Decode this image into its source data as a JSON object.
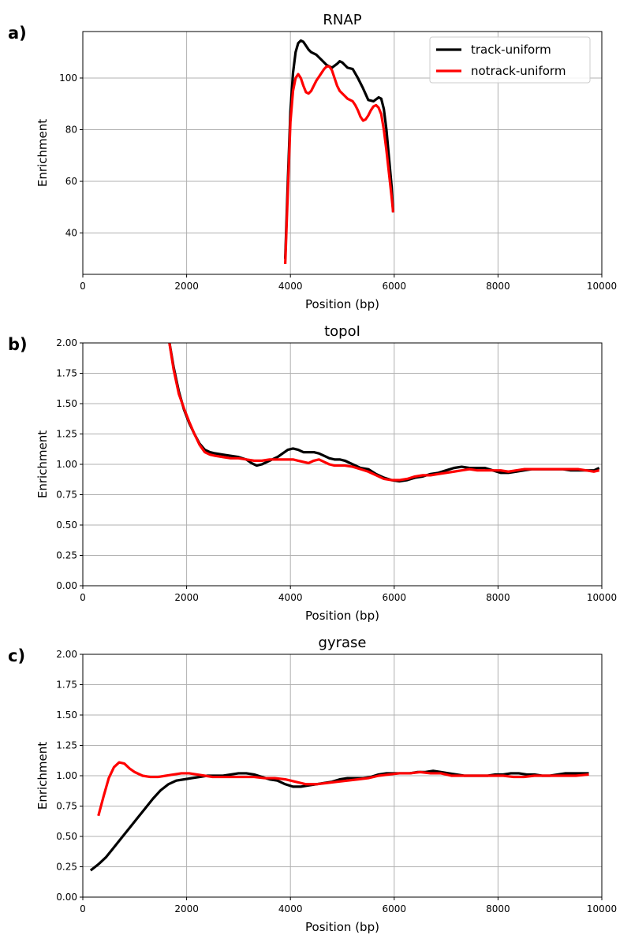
{
  "colors": {
    "track": "#000000",
    "notrack": "#ff0000",
    "grid": "#b0b0b0"
  },
  "chart_data": [
    {
      "panel": "a)",
      "type": "line",
      "title": "RNAP",
      "xlabel": "Position (bp)",
      "ylabel": "Enrichment",
      "xlim": [
        0,
        10000
      ],
      "ylim": [
        24,
        118
      ],
      "xticks": [
        0,
        2000,
        4000,
        6000,
        8000,
        10000
      ],
      "yticks": [
        40,
        60,
        80,
        100
      ],
      "grid": true,
      "legend": {
        "placement": "top-right",
        "entries": [
          "track-uniform",
          "notrack-uniform"
        ]
      },
      "series": [
        {
          "name": "track-uniform",
          "color": "#000000",
          "x": [
            3900,
            3950,
            4000,
            4050,
            4100,
            4150,
            4200,
            4250,
            4300,
            4350,
            4400,
            4450,
            4500,
            4600,
            4700,
            4800,
            4900,
            4950,
            5000,
            5050,
            5100,
            5200,
            5300,
            5400,
            5500,
            5600,
            5700,
            5750,
            5800,
            5850,
            5900,
            5950,
            5980
          ],
          "y": [
            30,
            60,
            87,
            102,
            110,
            113.5,
            114.5,
            114,
            112.5,
            111,
            110,
            109.5,
            109,
            107,
            105,
            104,
            105.5,
            106.5,
            106,
            105,
            104,
            103.5,
            100,
            96,
            91.5,
            91,
            92.5,
            92,
            88,
            80,
            69,
            58,
            48
          ]
        },
        {
          "name": "notrack-uniform",
          "color": "#ff0000",
          "x": [
            3900,
            3950,
            4000,
            4050,
            4100,
            4150,
            4200,
            4250,
            4300,
            4350,
            4400,
            4450,
            4500,
            4550,
            4600,
            4650,
            4700,
            4750,
            4800,
            4850,
            4900,
            4950,
            5000,
            5050,
            5100,
            5150,
            5200,
            5250,
            5300,
            5350,
            5400,
            5450,
            5500,
            5550,
            5600,
            5650,
            5700,
            5750,
            5800,
            5850,
            5900,
            5950,
            5980
          ],
          "y": [
            28,
            56,
            83,
            95,
            100,
            101.5,
            100,
            97,
            94.5,
            94,
            95,
            97,
            99,
            100.5,
            102,
            103.5,
            104.5,
            104.5,
            103,
            100,
            97,
            95,
            94,
            93,
            92,
            91.5,
            91,
            89.5,
            87.5,
            85,
            83.5,
            84,
            85.5,
            87.5,
            89,
            89.5,
            88.5,
            86,
            80,
            72,
            63,
            54,
            48
          ]
        }
      ]
    },
    {
      "panel": "b)",
      "type": "line",
      "title": "topoI",
      "xlabel": "Position (bp)",
      "ylabel": "Enrichment",
      "xlim": [
        0,
        10000
      ],
      "ylim": [
        0,
        2.0
      ],
      "xticks": [
        0,
        2000,
        4000,
        6000,
        8000,
        10000
      ],
      "yticks": [
        0.0,
        0.25,
        0.5,
        0.75,
        1.0,
        1.25,
        1.5,
        1.75,
        2.0
      ],
      "ytick_labels": [
        "0.00",
        "0.25",
        "0.50",
        "0.75",
        "1.00",
        "1.25",
        "1.50",
        "1.75",
        "2.00"
      ],
      "grid": true,
      "series": [
        {
          "name": "track-uniform",
          "color": "#000000",
          "x": [
            1550,
            1650,
            1750,
            1850,
            1950,
            2050,
            2150,
            2250,
            2350,
            2450,
            2550,
            2700,
            2850,
            3000,
            3150,
            3250,
            3350,
            3450,
            3550,
            3650,
            3750,
            3850,
            3950,
            4050,
            4150,
            4250,
            4350,
            4450,
            4550,
            4650,
            4750,
            4850,
            4950,
            5050,
            5200,
            5350,
            5500,
            5650,
            5800,
            5950,
            6100,
            6250,
            6400,
            6550,
            6700,
            6850,
            7000,
            7150,
            7300,
            7450,
            7600,
            7750,
            7900,
            8050,
            8200,
            8350,
            8500,
            8650,
            8800,
            8950,
            9100,
            9250,
            9400,
            9550,
            9700,
            9850,
            9950
          ],
          "y": [
            2.3,
            2.05,
            1.8,
            1.6,
            1.45,
            1.34,
            1.25,
            1.17,
            1.12,
            1.1,
            1.09,
            1.08,
            1.07,
            1.06,
            1.04,
            1.01,
            0.99,
            1.0,
            1.02,
            1.04,
            1.06,
            1.09,
            1.12,
            1.13,
            1.12,
            1.1,
            1.1,
            1.1,
            1.09,
            1.07,
            1.05,
            1.04,
            1.04,
            1.03,
            1.0,
            0.97,
            0.96,
            0.92,
            0.89,
            0.87,
            0.86,
            0.87,
            0.89,
            0.9,
            0.92,
            0.93,
            0.95,
            0.97,
            0.98,
            0.97,
            0.97,
            0.97,
            0.95,
            0.93,
            0.93,
            0.94,
            0.95,
            0.96,
            0.96,
            0.96,
            0.96,
            0.96,
            0.95,
            0.95,
            0.95,
            0.95,
            0.97
          ]
        },
        {
          "name": "notrack-uniform",
          "color": "#ff0000",
          "x": [
            1650,
            1750,
            1850,
            1950,
            2050,
            2150,
            2250,
            2350,
            2450,
            2550,
            2700,
            2850,
            3000,
            3150,
            3300,
            3450,
            3600,
            3750,
            3850,
            3950,
            4050,
            4150,
            4250,
            4350,
            4450,
            4550,
            4650,
            4750,
            4850,
            4950,
            5050,
            5200,
            5350,
            5500,
            5650,
            5800,
            5950,
            6100,
            6250,
            6400,
            6550,
            6700,
            6850,
            7000,
            7150,
            7300,
            7450,
            7600,
            7750,
            7900,
            8050,
            8200,
            8350,
            8500,
            8650,
            8800,
            8950,
            9100,
            9250,
            9400,
            9550,
            9700,
            9850,
            9950
          ],
          "y": [
            2.05,
            1.78,
            1.58,
            1.46,
            1.35,
            1.25,
            1.16,
            1.1,
            1.08,
            1.07,
            1.06,
            1.05,
            1.05,
            1.04,
            1.03,
            1.03,
            1.04,
            1.04,
            1.04,
            1.04,
            1.04,
            1.03,
            1.02,
            1.01,
            1.03,
            1.04,
            1.02,
            1.0,
            0.99,
            0.99,
            0.99,
            0.98,
            0.96,
            0.94,
            0.91,
            0.88,
            0.87,
            0.87,
            0.88,
            0.9,
            0.91,
            0.91,
            0.92,
            0.93,
            0.94,
            0.95,
            0.96,
            0.95,
            0.95,
            0.95,
            0.95,
            0.94,
            0.95,
            0.96,
            0.96,
            0.96,
            0.96,
            0.96,
            0.96,
            0.96,
            0.96,
            0.95,
            0.94,
            0.95
          ]
        }
      ]
    },
    {
      "panel": "c)",
      "type": "line",
      "title": "gyrase",
      "xlabel": "Position (bp)",
      "ylabel": "Enrichment",
      "xlim": [
        0,
        10000
      ],
      "ylim": [
        0,
        2.0
      ],
      "xticks": [
        0,
        2000,
        4000,
        6000,
        8000,
        10000
      ],
      "yticks": [
        0.0,
        0.25,
        0.5,
        0.75,
        1.0,
        1.25,
        1.5,
        1.75,
        2.0
      ],
      "ytick_labels": [
        "0.00",
        "0.25",
        "0.50",
        "0.75",
        "1.00",
        "1.25",
        "1.50",
        "1.75",
        "2.00"
      ],
      "grid": true,
      "series": [
        {
          "name": "track-uniform",
          "color": "#000000",
          "x": [
            150,
            300,
            450,
            600,
            750,
            900,
            1050,
            1200,
            1350,
            1500,
            1650,
            1800,
            1950,
            2100,
            2250,
            2400,
            2550,
            2700,
            2850,
            3000,
            3150,
            3300,
            3450,
            3600,
            3750,
            3900,
            4050,
            4200,
            4350,
            4500,
            4650,
            4800,
            4950,
            5100,
            5250,
            5400,
            5550,
            5700,
            5850,
            6000,
            6150,
            6300,
            6450,
            6600,
            6750,
            6900,
            7050,
            7200,
            7350,
            7500,
            7650,
            7800,
            7950,
            8100,
            8250,
            8400,
            8550,
            8700,
            8850,
            9000,
            9150,
            9300,
            9450,
            9600,
            9750
          ],
          "y": [
            0.22,
            0.27,
            0.33,
            0.41,
            0.49,
            0.57,
            0.65,
            0.73,
            0.81,
            0.88,
            0.93,
            0.96,
            0.97,
            0.98,
            0.99,
            1.0,
            1.0,
            1.0,
            1.01,
            1.02,
            1.02,
            1.01,
            0.99,
            0.97,
            0.96,
            0.93,
            0.91,
            0.91,
            0.92,
            0.93,
            0.94,
            0.95,
            0.97,
            0.98,
            0.98,
            0.98,
            0.99,
            1.01,
            1.02,
            1.02,
            1.02,
            1.02,
            1.03,
            1.03,
            1.04,
            1.03,
            1.02,
            1.01,
            1.0,
            1.0,
            1.0,
            1.0,
            1.01,
            1.01,
            1.02,
            1.02,
            1.01,
            1.01,
            1.0,
            1.0,
            1.01,
            1.02,
            1.02,
            1.02,
            1.02
          ]
        },
        {
          "name": "notrack-uniform",
          "color": "#ff0000",
          "x": [
            300,
            400,
            500,
            600,
            700,
            800,
            900,
            1000,
            1150,
            1300,
            1450,
            1600,
            1750,
            1900,
            2050,
            2200,
            2350,
            2500,
            2700,
            2900,
            3100,
            3300,
            3500,
            3700,
            3900,
            4100,
            4300,
            4500,
            4700,
            4900,
            5100,
            5300,
            5500,
            5700,
            5900,
            6100,
            6300,
            6500,
            6700,
            6900,
            7100,
            7300,
            7500,
            7700,
            7900,
            8100,
            8300,
            8500,
            8700,
            8900,
            9100,
            9300,
            9500,
            9750
          ],
          "y": [
            0.67,
            0.83,
            0.98,
            1.07,
            1.11,
            1.1,
            1.06,
            1.03,
            1.0,
            0.99,
            0.99,
            1.0,
            1.01,
            1.02,
            1.02,
            1.01,
            1.0,
            0.99,
            0.99,
            0.99,
            0.99,
            0.99,
            0.98,
            0.98,
            0.97,
            0.95,
            0.93,
            0.93,
            0.94,
            0.95,
            0.96,
            0.97,
            0.98,
            1.0,
            1.01,
            1.02,
            1.02,
            1.03,
            1.02,
            1.02,
            1.0,
            1.0,
            1.0,
            1.0,
            1.0,
            1.0,
            0.99,
            0.99,
            1.0,
            1.0,
            1.0,
            1.0,
            1.0,
            1.01
          ]
        }
      ]
    }
  ]
}
